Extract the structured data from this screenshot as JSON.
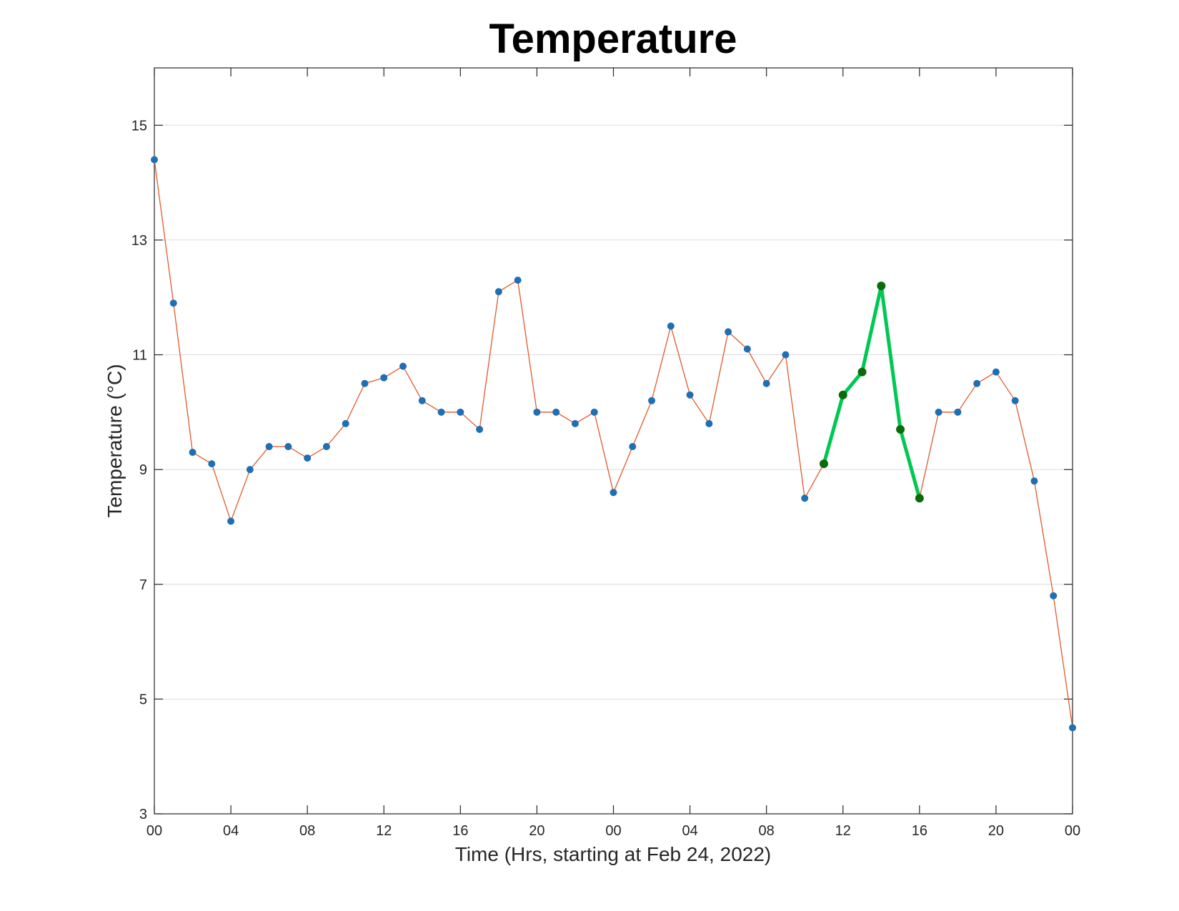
{
  "chart_data": {
    "type": "line",
    "title": "Temperature",
    "xlabel": "Time (Hrs, starting at Feb 24, 2022)",
    "ylabel": "Temperature (°C)",
    "ylim": [
      3,
      16
    ],
    "yticks": [
      3,
      5,
      7,
      9,
      11,
      13,
      15
    ],
    "x_unit": "hours since 2022-02-24 00:00",
    "xlim": [
      0,
      48
    ],
    "xticks": [
      {
        "x": 0,
        "label": "00"
      },
      {
        "x": 4,
        "label": "04"
      },
      {
        "x": 8,
        "label": "08"
      },
      {
        "x": 12,
        "label": "12"
      },
      {
        "x": 16,
        "label": "16"
      },
      {
        "x": 20,
        "label": "20"
      },
      {
        "x": 24,
        "label": "00"
      },
      {
        "x": 28,
        "label": "04"
      },
      {
        "x": 32,
        "label": "08"
      },
      {
        "x": 36,
        "label": "12"
      },
      {
        "x": 40,
        "label": "16"
      },
      {
        "x": 44,
        "label": "20"
      },
      {
        "x": 48,
        "label": "00"
      }
    ],
    "grid": "horizontal",
    "series": [
      {
        "color": "#e05a2b",
        "marker_color": "#1f6fb5",
        "x": [
          0,
          1,
          2,
          3,
          4,
          5,
          6,
          7,
          8,
          9,
          10,
          11,
          12,
          13,
          14,
          15,
          16,
          17,
          18,
          19,
          20,
          21,
          22,
          23,
          24,
          25,
          26,
          27,
          28,
          29,
          30,
          31,
          32,
          33,
          34,
          35,
          36,
          37,
          38,
          39,
          40,
          41,
          42,
          43,
          44,
          45,
          46,
          47,
          48
        ],
        "values": [
          14.4,
          11.9,
          9.3,
          9.1,
          8.1,
          9.0,
          9.4,
          9.4,
          9.2,
          9.4,
          9.8,
          10.5,
          10.6,
          10.8,
          10.2,
          10.0,
          10.0,
          9.7,
          12.1,
          12.3,
          10.0,
          10.0,
          9.8,
          10.0,
          8.6,
          9.4,
          10.2,
          11.5,
          10.3,
          9.8,
          11.4,
          11.1,
          10.5,
          11.0,
          8.5,
          9.1,
          10.3,
          10.7,
          12.2,
          9.7,
          8.5,
          10.0,
          10.0,
          10.5,
          10.7,
          10.2,
          8.8,
          6.8,
          4.5
        ]
      },
      {
        "color": "#00c853",
        "marker_color": "#0b6b0b",
        "x": [
          35,
          36,
          37,
          38,
          39,
          40
        ],
        "values": [
          9.1,
          10.3,
          10.7,
          12.2,
          9.7,
          8.5
        ]
      }
    ]
  }
}
